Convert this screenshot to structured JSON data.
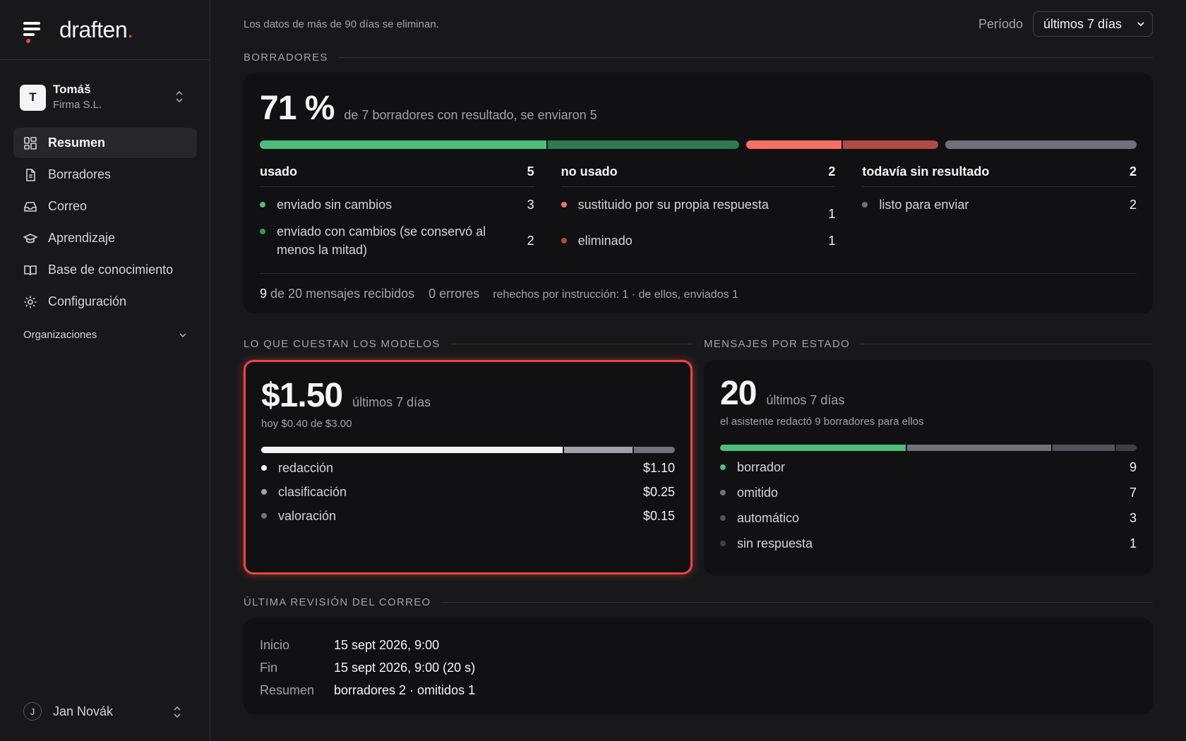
{
  "brand": {
    "name": "draften",
    "dot": "."
  },
  "org": {
    "initial": "T",
    "name": "Tomáš",
    "company": "Firma S.L."
  },
  "nav": {
    "items": [
      {
        "label": "Resumen",
        "icon": "dashboard-icon",
        "active": true
      },
      {
        "label": "Borradores",
        "icon": "document-icon"
      },
      {
        "label": "Correo",
        "icon": "inbox-icon"
      },
      {
        "label": "Aprendizaje",
        "icon": "graduation-cap-icon"
      },
      {
        "label": "Base de conocimiento",
        "icon": "book-icon"
      },
      {
        "label": "Configuración",
        "icon": "gear-icon"
      }
    ],
    "section": "Organizaciones"
  },
  "user": {
    "initial": "J",
    "name": "Jan Novák"
  },
  "topbar": {
    "retention": "Los datos de más de 90 días se eliminan.",
    "period_label": "Período",
    "period_value": "últimos 7 días"
  },
  "drafts": {
    "title": "BORRADORES",
    "percent": "71 %",
    "summary": "de 7 borradores con resultado, se enviaron 5",
    "bar": [
      {
        "value": 3,
        "color": "#4ebd7d"
      },
      {
        "value": 2,
        "color": "#2f7a50"
      },
      {
        "value": 1,
        "color": "#f87064"
      },
      {
        "value": 1,
        "color": "#b04a44"
      },
      {
        "value": 2,
        "color": "#71717a"
      }
    ],
    "groups": [
      {
        "label": "usado",
        "count": "5",
        "items": [
          {
            "label": "enviado sin cambios",
            "value": "3",
            "color": "#4ebd7d"
          },
          {
            "label": "enviado con cambios (se conservó al menos la mitad)",
            "value": "2",
            "color": "#2f9a5f"
          }
        ]
      },
      {
        "label": "no usado",
        "count": "2",
        "items": [
          {
            "label": "sustituido por su propia respuesta",
            "value": "1",
            "color": "#f87064"
          },
          {
            "label": "eliminado",
            "value": "1",
            "color": "#b04a44"
          }
        ]
      },
      {
        "label": "todavía sin resultado",
        "count": "2",
        "items": [
          {
            "label": "listo para enviar",
            "value": "2",
            "color": "#71717a"
          }
        ]
      }
    ],
    "footer": {
      "received_count": "9",
      "received_text": "de 20 mensajes recibidos",
      "errors": "0 errores",
      "redone": "rehechos por instrucción: 1 · de ellos, enviados 1"
    }
  },
  "costs": {
    "title": "LO QUE CUESTAN LOS MODELOS",
    "total": "$1.50",
    "period": "últimos 7 días",
    "today": "hoy $0.40 de $3.00",
    "bar": [
      {
        "value": 1.1,
        "color": "#f4f4f5"
      },
      {
        "value": 0.25,
        "color": "#a1a1aa"
      },
      {
        "value": 0.15,
        "color": "#71717a"
      }
    ],
    "items": [
      {
        "label": "redacción",
        "value": "$1.10",
        "color": "#f4f4f5"
      },
      {
        "label": "clasificación",
        "value": "$0.25",
        "color": "#a1a1aa"
      },
      {
        "label": "valoración",
        "value": "$0.15",
        "color": "#71717a"
      }
    ]
  },
  "status": {
    "title": "MENSAJES POR ESTADO",
    "total": "20",
    "period": "últimos 7 días",
    "note": "el asistente redactó 9 borradores para ellos",
    "bar": [
      {
        "value": 9,
        "color": "#4ebd7d"
      },
      {
        "value": 7,
        "color": "#71717a"
      },
      {
        "value": 3,
        "color": "#52525b"
      },
      {
        "value": 1,
        "color": "#3f3f46"
      }
    ],
    "items": [
      {
        "label": "borrador",
        "value": "9",
        "color": "#4ebd7d"
      },
      {
        "label": "omitido",
        "value": "7",
        "color": "#71717a"
      },
      {
        "label": "automático",
        "value": "3",
        "color": "#52525b"
      },
      {
        "label": "sin respuesta",
        "value": "1",
        "color": "#3f3f46"
      }
    ]
  },
  "review": {
    "title": "ÚLTIMA REVISIÓN DEL CORREO",
    "rows": [
      {
        "k": "Inicio",
        "v": "15 sept 2026, 9:00"
      },
      {
        "k": "Fin",
        "v": "15 sept 2026, 9:00 (20 s)"
      },
      {
        "k": "Resumen",
        "v": "borradores 2 · omitidos 1"
      }
    ]
  }
}
